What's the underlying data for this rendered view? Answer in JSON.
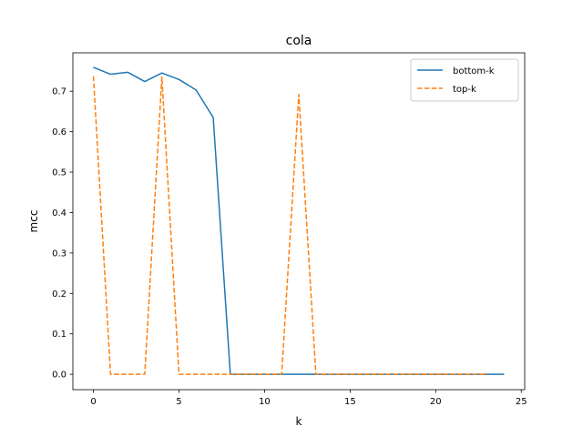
{
  "chart_data": {
    "type": "line",
    "title": "cola",
    "xlabel": "k",
    "ylabel": "mcc",
    "xlim": [
      -1.2,
      25.2
    ],
    "ylim": [
      -0.038,
      0.795
    ],
    "xticks": [
      0,
      5,
      10,
      15,
      20,
      25
    ],
    "xtick_labels": [
      "0",
      "5",
      "10",
      "15",
      "20",
      "25"
    ],
    "yticks": [
      0.0,
      0.1,
      0.2,
      0.3,
      0.4,
      0.5,
      0.6,
      0.7
    ],
    "ytick_labels": [
      "0.0",
      "0.1",
      "0.2",
      "0.3",
      "0.4",
      "0.5",
      "0.6",
      "0.7"
    ],
    "grid": false,
    "legend_position": "top-right",
    "series": [
      {
        "name": "bottom-k",
        "color": "#1f77b4",
        "style": "solid",
        "x": [
          0,
          1,
          2,
          3,
          4,
          5,
          6,
          7,
          8,
          9,
          10,
          11,
          12,
          13,
          14,
          15,
          16,
          17,
          18,
          19,
          20,
          21,
          22,
          23,
          24
        ],
        "values": [
          0.759,
          0.742,
          0.747,
          0.724,
          0.745,
          0.729,
          0.703,
          0.635,
          0.0,
          0.0,
          0.0,
          0.0,
          0.0,
          0.0,
          0.0,
          0.0,
          0.0,
          0.0,
          0.0,
          0.0,
          0.0,
          0.0,
          0.0,
          0.0,
          0.0
        ]
      },
      {
        "name": "top-k",
        "color": "#ff7f0e",
        "style": "dashed",
        "x": [
          0,
          1,
          2,
          3,
          4,
          5,
          6,
          7,
          8,
          9,
          10,
          11,
          12,
          13,
          14,
          15,
          16,
          17,
          18,
          19,
          20,
          21,
          22,
          23
        ],
        "values": [
          0.737,
          0.0,
          0.0,
          0.0,
          0.735,
          0.0,
          0.0,
          0.0,
          0.0,
          0.0,
          0.0,
          0.0,
          0.692,
          0.0,
          0.0,
          0.0,
          0.0,
          0.0,
          0.0,
          0.0,
          0.0,
          0.0,
          0.0,
          0.0
        ]
      }
    ]
  }
}
